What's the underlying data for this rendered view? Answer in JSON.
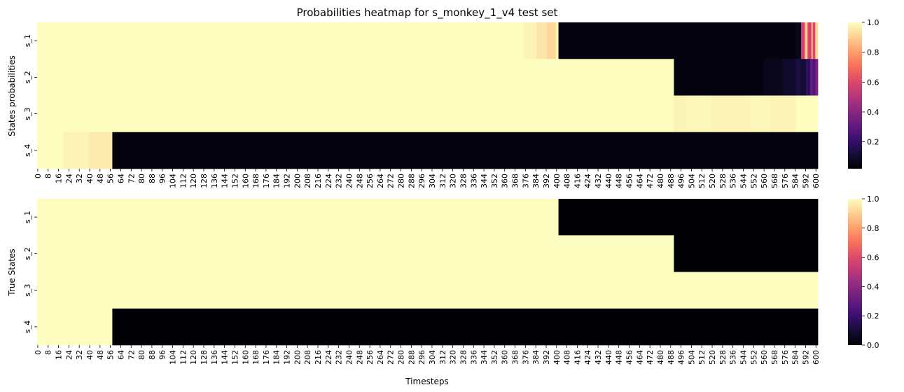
{
  "chart_data": [
    {
      "type": "heatmap",
      "title": "Probabilities heatmap for s_monkey_1_v4 test set",
      "xlabel": "",
      "ylabel": "States probabilities",
      "rows": [
        "s_1",
        "s_2",
        "s_3",
        "s_4"
      ],
      "x_ticks": [
        0,
        8,
        16,
        24,
        32,
        40,
        48,
        56,
        64,
        72,
        80,
        88,
        96,
        104,
        112,
        120,
        128,
        136,
        144,
        152,
        160,
        168,
        176,
        184,
        192,
        200,
        208,
        216,
        224,
        232,
        240,
        248,
        256,
        264,
        272,
        280,
        288,
        296,
        304,
        312,
        320,
        328,
        336,
        344,
        352,
        360,
        368,
        376,
        384,
        392,
        400,
        408,
        416,
        424,
        432,
        440,
        448,
        456,
        464,
        472,
        480,
        488,
        496,
        504,
        512,
        520,
        528,
        536,
        544,
        552,
        560,
        568,
        576,
        584,
        592,
        600
      ],
      "n_timesteps": 602,
      "colormap": "magma",
      "colorbar_range": [
        0.02,
        1.0
      ],
      "colorbar_ticks": [
        "0.2",
        "0.4",
        "0.6",
        "0.8",
        "1.0"
      ],
      "colorbar_tick_values": [
        0.2,
        0.4,
        0.6,
        0.8,
        1.0
      ],
      "segments": [
        [
          {
            "start": 0,
            "end": 375,
            "value": 1.0
          },
          {
            "start": 375,
            "end": 385,
            "value": 0.98
          },
          {
            "start": 385,
            "end": 393,
            "value": 0.95
          },
          {
            "start": 393,
            "end": 400,
            "value": 0.92
          },
          {
            "start": 400,
            "end": 402,
            "value": 0.98
          },
          {
            "start": 402,
            "end": 585,
            "value": 0.02
          },
          {
            "start": 585,
            "end": 589,
            "value": 0.05
          },
          {
            "start": 589,
            "end": 591,
            "value": 0.55
          },
          {
            "start": 591,
            "end": 592,
            "value": 0.6
          },
          {
            "start": 592,
            "end": 594,
            "value": 0.9
          },
          {
            "start": 594,
            "end": 595,
            "value": 0.6
          },
          {
            "start": 595,
            "end": 597,
            "value": 0.55
          },
          {
            "start": 597,
            "end": 598,
            "value": 0.9
          },
          {
            "start": 598,
            "end": 600,
            "value": 0.6
          },
          {
            "start": 600,
            "end": 602,
            "value": 0.92
          }
        ],
        [
          {
            "start": 0,
            "end": 491,
            "value": 1.0
          },
          {
            "start": 491,
            "end": 560,
            "value": 0.02
          },
          {
            "start": 560,
            "end": 575,
            "value": 0.05
          },
          {
            "start": 575,
            "end": 585,
            "value": 0.08
          },
          {
            "start": 585,
            "end": 588,
            "value": 0.12
          },
          {
            "start": 588,
            "end": 593,
            "value": 0.1
          },
          {
            "start": 593,
            "end": 594,
            "value": 0.2
          },
          {
            "start": 594,
            "end": 596,
            "value": 0.15
          },
          {
            "start": 596,
            "end": 598,
            "value": 0.3
          },
          {
            "start": 598,
            "end": 600,
            "value": 0.25
          },
          {
            "start": 600,
            "end": 602,
            "value": 0.35
          }
        ],
        [
          {
            "start": 0,
            "end": 491,
            "value": 1.0
          },
          {
            "start": 491,
            "end": 500,
            "value": 0.98
          },
          {
            "start": 500,
            "end": 520,
            "value": 0.99
          },
          {
            "start": 520,
            "end": 550,
            "value": 0.98
          },
          {
            "start": 550,
            "end": 565,
            "value": 0.99
          },
          {
            "start": 565,
            "end": 585,
            "value": 0.98
          },
          {
            "start": 585,
            "end": 602,
            "value": 1.0
          }
        ],
        [
          {
            "start": 0,
            "end": 20,
            "value": 1.0
          },
          {
            "start": 20,
            "end": 40,
            "value": 0.98
          },
          {
            "start": 40,
            "end": 58,
            "value": 0.96
          },
          {
            "start": 58,
            "end": 602,
            "value": 0.02
          }
        ]
      ]
    },
    {
      "type": "heatmap",
      "title": "",
      "xlabel": "Timesteps",
      "ylabel": "True States",
      "rows": [
        "s_1",
        "s_2",
        "s_3",
        "s_4"
      ],
      "x_ticks": [
        0,
        8,
        16,
        24,
        32,
        40,
        48,
        56,
        64,
        72,
        80,
        88,
        96,
        104,
        112,
        120,
        128,
        136,
        144,
        152,
        160,
        168,
        176,
        184,
        192,
        200,
        208,
        216,
        224,
        232,
        240,
        248,
        256,
        264,
        272,
        280,
        288,
        296,
        304,
        312,
        320,
        328,
        336,
        344,
        352,
        360,
        368,
        376,
        384,
        392,
        400,
        408,
        416,
        424,
        432,
        440,
        448,
        456,
        464,
        472,
        480,
        488,
        496,
        504,
        512,
        520,
        528,
        536,
        544,
        552,
        560,
        568,
        576,
        584,
        592,
        600
      ],
      "n_timesteps": 602,
      "colormap": "magma",
      "colorbar_range": [
        0.0,
        1.0
      ],
      "colorbar_ticks": [
        "0.0",
        "0.2",
        "0.4",
        "0.6",
        "0.8",
        "1.0"
      ],
      "colorbar_tick_values": [
        0.0,
        0.2,
        0.4,
        0.6,
        0.8,
        1.0
      ],
      "segments": [
        [
          {
            "start": 0,
            "end": 402,
            "value": 1.0
          },
          {
            "start": 402,
            "end": 602,
            "value": 0.0
          }
        ],
        [
          {
            "start": 0,
            "end": 491,
            "value": 1.0
          },
          {
            "start": 491,
            "end": 602,
            "value": 0.0
          }
        ],
        [
          {
            "start": 0,
            "end": 602,
            "value": 1.0
          }
        ],
        [
          {
            "start": 0,
            "end": 58,
            "value": 1.0
          },
          {
            "start": 58,
            "end": 602,
            "value": 0.0
          }
        ]
      ]
    }
  ]
}
